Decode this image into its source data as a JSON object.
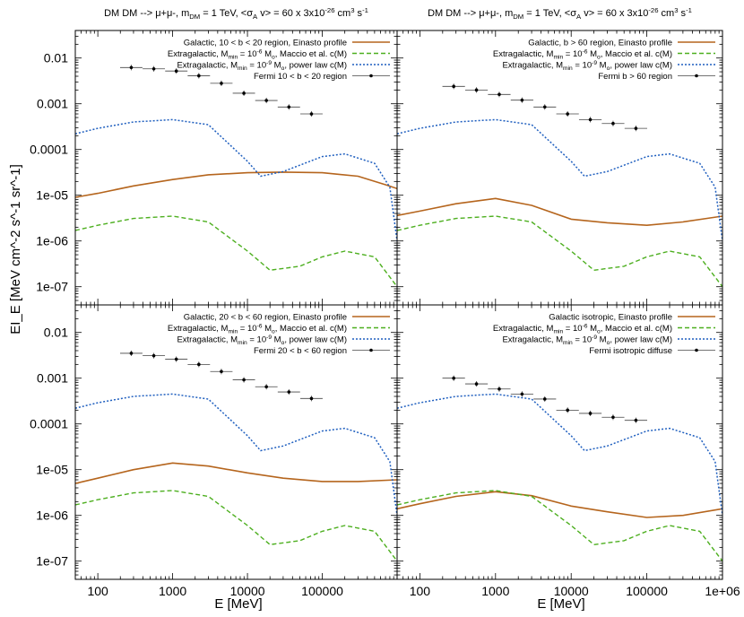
{
  "figure": {
    "ylabel": "EI_E [MeV cm^-2 s^-1 sr^-1]",
    "xlabel": "E [MeV]",
    "x_tick_labels": [
      "100",
      "1000",
      "10000",
      "100000",
      "1e+06"
    ],
    "y_tick_labels": [
      "0.01",
      "0.001",
      "0.0001",
      "1e-05",
      "1e-06",
      "1e-07"
    ]
  },
  "colors": {
    "galactic": "#b5651d",
    "galactic_component": "#e0a77e",
    "extragalactic_maccio": "#4daf1f",
    "extragalactic_powerlaw": "#1f5fbf",
    "fermi": "#000000"
  },
  "chart_data": [
    {
      "type": "line",
      "title": "DM DM --> μ+μ-, m_DM = 1 TeV, <σ_A v> = 60 x 3x10^-26 cm^3 s^-1",
      "legend": [
        "Galactic, 10 < b < 20 region, Einasto profile",
        "Extragalactic, M_min = 10^-6 M_o, Maccio et al. c(M)",
        "Extragalactic, M_min = 10^-9 M_o, power law c(M)",
        "Fermi 10 < b < 20 region"
      ],
      "legend_placement": "top-right",
      "x_scale": "log",
      "y_scale": "log",
      "xlim": [
        50,
        1000000
      ],
      "ylim": [
        4e-08,
        0.04
      ],
      "series": [
        {
          "name": "Galactic, 10 < b < 20 region, Einasto profile",
          "style": "galactic",
          "x": [
            50,
            100,
            300,
            1000,
            3000,
            10000,
            30000,
            100000,
            300000,
            700000,
            1000000
          ],
          "y": [
            9e-06,
            1.1e-05,
            1.6e-05,
            2.2e-05,
            2.8e-05,
            3.1e-05,
            3.2e-05,
            3.1e-05,
            2.6e-05,
            1.7e-05,
            1.4e-05
          ]
        },
        {
          "name": "Extragalactic, M_min = 10^-6 M_o, Maccio et al. c(M)",
          "style": "maccio",
          "x": [
            50,
            100,
            300,
            1000,
            3000,
            10000,
            20000,
            50000,
            100000,
            200000,
            500000,
            1000000
          ],
          "y": [
            1.7e-06,
            2.2e-06,
            3.1e-06,
            3.5e-06,
            2.6e-06,
            6e-07,
            2.3e-07,
            2.8e-07,
            4.5e-07,
            6e-07,
            4.5e-07,
            1e-07
          ]
        },
        {
          "name": "Extragalactic, M_min = 10^-9 M_o, power law c(M)",
          "style": "powerlaw",
          "x": [
            50,
            100,
            300,
            1000,
            3000,
            10000,
            15000,
            30000,
            100000,
            200000,
            500000,
            800000,
            1000000
          ],
          "y": [
            0.00022,
            0.00029,
            0.0004,
            0.00045,
            0.00035,
            5.5e-05,
            2.6e-05,
            3.3e-05,
            7e-05,
            8e-05,
            5e-05,
            1.5e-05,
            1e-06
          ]
        },
        {
          "name": "Fermi 10 < b < 20 region",
          "style": "fermi",
          "x": [
            280,
            560,
            1120,
            2240,
            4480,
            8960,
            17900,
            35800,
            71700
          ],
          "y": [
            0.0062,
            0.0058,
            0.0052,
            0.0041,
            0.0028,
            0.0017,
            0.00118,
            0.00085,
            0.0006
          ],
          "xerr_factor": 1.41
        }
      ]
    },
    {
      "type": "line",
      "title": "DM DM --> μ+μ-, m_DM = 1 TeV, <σ_A v> = 60 x 3x10^-26 cm^3 s^-1",
      "legend": [
        "Galactic, b > 60 region, Einasto profile",
        "Extragalactic, M_min = 10^-6 M_o, Maccio et al. c(M)",
        "Extragalactic, M_min = 10^-9 M_o, power law c(M)",
        "Fermi b > 60 region"
      ],
      "legend_placement": "top-right",
      "x_scale": "log",
      "y_scale": "log",
      "xlim": [
        50,
        1000000
      ],
      "ylim": [
        4e-08,
        0.04
      ],
      "series": [
        {
          "name": "Galactic, b > 60 region, Einasto profile",
          "style": "galactic",
          "x": [
            50,
            100,
            300,
            1000,
            3000,
            10000,
            30000,
            100000,
            300000,
            1000000
          ],
          "y": [
            3.6e-06,
            4.5e-06,
            6.5e-06,
            8.5e-06,
            6e-06,
            3e-06,
            2.5e-06,
            2.2e-06,
            2.6e-06,
            3.5e-06
          ]
        },
        {
          "name": "Extragalactic, M_min = 10^-6 M_o, Maccio et al. c(M)",
          "style": "maccio",
          "x": [
            50,
            100,
            300,
            1000,
            3000,
            10000,
            20000,
            50000,
            100000,
            200000,
            500000,
            1000000
          ],
          "y": [
            1.7e-06,
            2.2e-06,
            3.1e-06,
            3.5e-06,
            2.6e-06,
            6e-07,
            2.3e-07,
            2.8e-07,
            4.5e-07,
            6e-07,
            4.5e-07,
            1e-07
          ]
        },
        {
          "name": "Extragalactic, M_min = 10^-9 M_o, power law c(M)",
          "style": "powerlaw",
          "x": [
            50,
            100,
            300,
            1000,
            3000,
            10000,
            15000,
            30000,
            100000,
            200000,
            500000,
            800000,
            1000000
          ],
          "y": [
            0.00022,
            0.00029,
            0.0004,
            0.00045,
            0.00035,
            5.5e-05,
            2.6e-05,
            3.3e-05,
            7e-05,
            8e-05,
            5e-05,
            1.5e-05,
            1e-06
          ]
        },
        {
          "name": "Fermi b > 60 region",
          "style": "fermi",
          "x": [
            280,
            560,
            1120,
            2240,
            4480,
            8960,
            17900,
            35800,
            71700
          ],
          "y": [
            0.0024,
            0.002,
            0.0016,
            0.0012,
            0.00085,
            0.0006,
            0.00045,
            0.00037,
            0.00029
          ],
          "xerr_factor": 1.41
        }
      ]
    },
    {
      "type": "line",
      "title": "",
      "legend": [
        "Galactic, 20 < b < 60 region, Einasto profile",
        "Extragalactic, M_min = 10^-6 M_o, Maccio et al. c(M)",
        "Extragalactic, M_min = 10^-9 M_o, power law c(M)",
        "Fermi 20 < b < 60 region"
      ],
      "legend_placement": "top-right",
      "x_scale": "log",
      "y_scale": "log",
      "xlim": [
        50,
        1000000
      ],
      "ylim": [
        4e-08,
        0.04
      ],
      "series": [
        {
          "name": "Galactic, 20 < b < 60 region, Einasto profile",
          "style": "galactic",
          "x": [
            50,
            100,
            300,
            1000,
            3000,
            10000,
            30000,
            100000,
            300000,
            1000000
          ],
          "y": [
            5e-06,
            6.5e-06,
            1e-05,
            1.4e-05,
            1.2e-05,
            8.5e-06,
            6.5e-06,
            5.5e-06,
            5.5e-06,
            6e-06
          ]
        },
        {
          "name": "Extragalactic, M_min = 10^-6 M_o, Maccio et al. c(M)",
          "style": "maccio",
          "x": [
            50,
            100,
            300,
            1000,
            3000,
            10000,
            20000,
            50000,
            100000,
            200000,
            500000,
            1000000
          ],
          "y": [
            1.7e-06,
            2.2e-06,
            3.1e-06,
            3.5e-06,
            2.6e-06,
            6e-07,
            2.3e-07,
            2.8e-07,
            4.5e-07,
            6e-07,
            4.5e-07,
            1e-07
          ]
        },
        {
          "name": "Extragalactic, M_min = 10^-9 M_o, power law c(M)",
          "style": "powerlaw",
          "x": [
            50,
            100,
            300,
            1000,
            3000,
            10000,
            15000,
            30000,
            100000,
            200000,
            500000,
            800000,
            1000000
          ],
          "y": [
            0.00022,
            0.00029,
            0.0004,
            0.00045,
            0.00035,
            5.5e-05,
            2.6e-05,
            3.3e-05,
            7e-05,
            8e-05,
            5e-05,
            1.5e-05,
            1e-06
          ]
        },
        {
          "name": "Fermi 20 < b < 60 region",
          "style": "fermi",
          "x": [
            280,
            560,
            1120,
            2240,
            4480,
            8960,
            17900,
            35800,
            71700
          ],
          "y": [
            0.0035,
            0.0031,
            0.0026,
            0.002,
            0.0014,
            0.00092,
            0.00065,
            0.0005,
            0.00036
          ],
          "xerr_factor": 1.41
        }
      ]
    },
    {
      "type": "line",
      "title": "",
      "legend": [
        "Galactic isotropic, Einasto profile",
        "Extragalactic, M_min = 10^-6 M_o, Maccio et al. c(M)",
        "Extragalactic, M_min = 10^-9 M_o, power law c(M)",
        "Fermi isotropic diffuse"
      ],
      "legend_placement": "top-right",
      "x_scale": "log",
      "y_scale": "log",
      "xlim": [
        50,
        1000000
      ],
      "ylim": [
        4e-08,
        0.04
      ],
      "series": [
        {
          "name": "Galactic isotropic, Einasto profile",
          "style": "galactic",
          "x": [
            50,
            100,
            300,
            1000,
            3000,
            10000,
            30000,
            100000,
            300000,
            1000000
          ],
          "y": [
            1.4e-06,
            1.8e-06,
            2.6e-06,
            3.3e-06,
            2.7e-06,
            1.6e-06,
            1.2e-06,
            9e-07,
            1e-06,
            1.4e-06
          ]
        },
        {
          "name": "Extragalactic, M_min = 10^-6 M_o, Maccio et al. c(M)",
          "style": "maccio",
          "x": [
            50,
            100,
            300,
            1000,
            3000,
            10000,
            20000,
            50000,
            100000,
            200000,
            500000,
            1000000
          ],
          "y": [
            1.7e-06,
            2.2e-06,
            3.1e-06,
            3.5e-06,
            2.6e-06,
            6e-07,
            2.3e-07,
            2.8e-07,
            4.5e-07,
            6e-07,
            4.5e-07,
            1e-07
          ]
        },
        {
          "name": "Extragalactic, M_min = 10^-9 M_o, power law c(M)",
          "style": "powerlaw",
          "x": [
            50,
            100,
            300,
            1000,
            3000,
            10000,
            15000,
            30000,
            100000,
            200000,
            500000,
            800000,
            1000000
          ],
          "y": [
            0.00022,
            0.00029,
            0.0004,
            0.00045,
            0.00035,
            5.5e-05,
            2.6e-05,
            3.3e-05,
            7e-05,
            8e-05,
            5e-05,
            1.5e-05,
            1e-06
          ]
        },
        {
          "name": "Fermi isotropic diffuse",
          "style": "fermi",
          "x": [
            280,
            560,
            1120,
            2240,
            4480,
            8960,
            17900,
            35800,
            71700
          ],
          "y": [
            0.001,
            0.00075,
            0.00058,
            0.00045,
            0.00035,
            0.0002,
            0.00017,
            0.00014,
            0.00012
          ],
          "xerr_factor": 1.41
        }
      ]
    }
  ]
}
